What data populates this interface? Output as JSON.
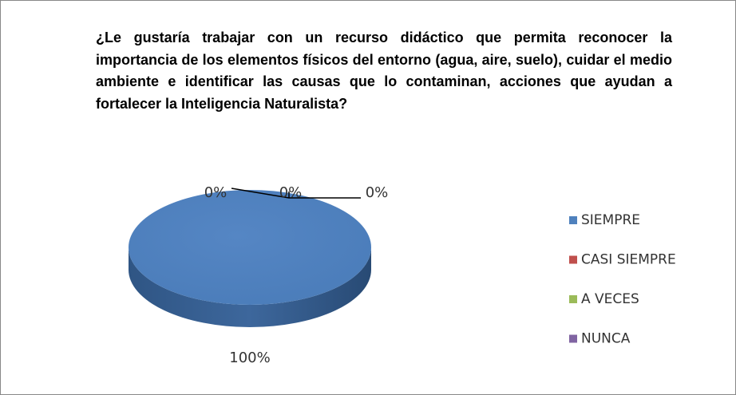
{
  "chart_data": {
    "type": "pie",
    "title": "¿Le gustaría trabajar con un recurso didáctico que permita reconocer la importancia de los elementos físicos del entorno (agua, aire, suelo), cuidar el medio ambiente e identificar las causas que lo contaminan, acciones que ayudan a fortalecer la Inteligencia Naturalista?",
    "categories": [
      "SIEMPRE",
      "CASI SIEMPRE",
      "A VECES",
      "NUNCA"
    ],
    "values": [
      100,
      0,
      0,
      0
    ],
    "value_labels": [
      "100%",
      "0%",
      "0%",
      "0%"
    ],
    "colors": [
      "#4f81bd",
      "#c0504d",
      "#9bbb59",
      "#8064a2"
    ],
    "legend": "right"
  }
}
